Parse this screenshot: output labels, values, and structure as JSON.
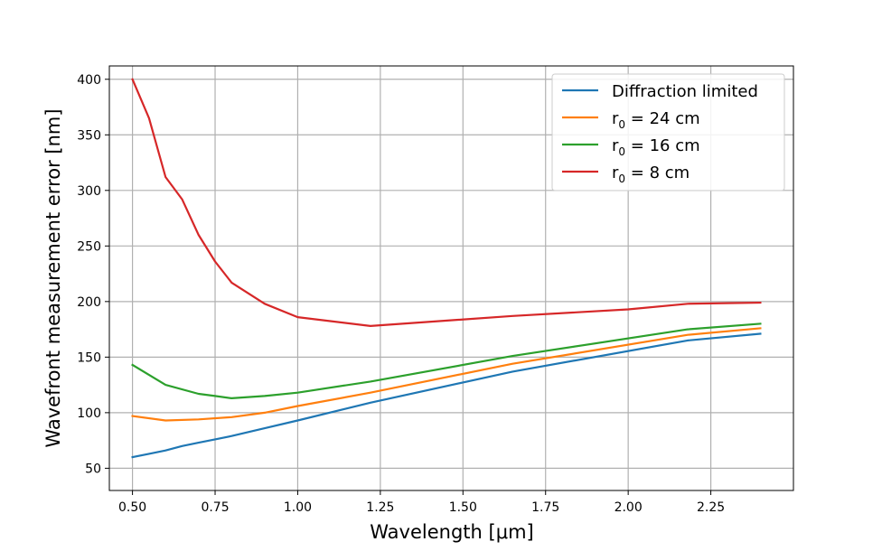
{
  "chart_data": {
    "type": "line",
    "title": "",
    "xlabel": "Wavelength [μm]",
    "ylabel": "Wavefront measurement error [nm]",
    "xlim": [
      0.43,
      2.5
    ],
    "ylim": [
      30,
      412
    ],
    "xticks": [
      0.5,
      0.75,
      1.0,
      1.25,
      1.5,
      1.75,
      2.0,
      2.25
    ],
    "xtick_labels": [
      "0.50",
      "0.75",
      "1.00",
      "1.25",
      "1.50",
      "1.75",
      "2.00",
      "2.25"
    ],
    "yticks": [
      50,
      100,
      150,
      200,
      250,
      300,
      350,
      400
    ],
    "ytick_labels": [
      "50",
      "100",
      "150",
      "200",
      "250",
      "300",
      "350",
      "400"
    ],
    "grid": true,
    "legend_position": "top-right",
    "series": [
      {
        "name": "Diffraction limited",
        "color": "#1f77b4",
        "x": [
          0.5,
          0.55,
          0.6,
          0.65,
          0.7,
          0.75,
          0.8,
          0.9,
          1.0,
          1.22,
          1.65,
          2.18,
          2.4
        ],
        "y": [
          60,
          63,
          66,
          70,
          73,
          76,
          79,
          86,
          93,
          109,
          137,
          165,
          171
        ]
      },
      {
        "name": "r0 = 24 cm",
        "label_main": "r",
        "label_sub": "0",
        "label_rest": " = 24 cm",
        "color": "#ff7f0e",
        "x": [
          0.5,
          0.6,
          0.7,
          0.8,
          0.9,
          1.0,
          1.22,
          1.65,
          2.18,
          2.4
        ],
        "y": [
          97,
          93,
          94,
          96,
          100,
          106,
          118,
          144,
          170,
          176
        ]
      },
      {
        "name": "r0 = 16 cm",
        "label_main": "r",
        "label_sub": "0",
        "label_rest": " = 16 cm",
        "color": "#2ca02c",
        "x": [
          0.5,
          0.6,
          0.7,
          0.75,
          0.8,
          0.9,
          1.0,
          1.22,
          1.65,
          2.18,
          2.4
        ],
        "y": [
          143,
          125,
          117,
          115,
          113,
          115,
          118,
          128,
          151,
          175,
          180
        ]
      },
      {
        "name": "r0 = 8 cm",
        "label_main": "r",
        "label_sub": "0",
        "label_rest": " = 8 cm",
        "color": "#d62728",
        "x": [
          0.5,
          0.55,
          0.6,
          0.65,
          0.7,
          0.75,
          0.8,
          0.9,
          1.0,
          1.22,
          1.65,
          2.0,
          2.18,
          2.4
        ],
        "y": [
          400,
          365,
          312,
          292,
          260,
          236,
          217,
          198,
          186,
          178,
          187,
          193,
          198,
          199
        ]
      }
    ]
  }
}
